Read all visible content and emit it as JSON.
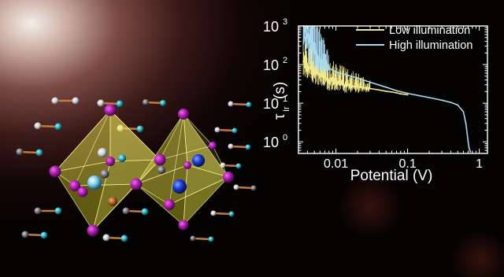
{
  "colors": {
    "low_illumination": "#f0e88a",
    "high_illumination": "#a9d8f0",
    "axes": "#ffffff",
    "octahedron": "#e8e040",
    "halide_atom": "#b020b0",
    "metal_atom": "#1a3cd0"
  },
  "chart_data": {
    "type": "line",
    "xscale": "log",
    "yscale": "log",
    "xlim": [
      0.003,
      1.3
    ],
    "ylim": [
      0.5,
      1000
    ],
    "xlabel": "Potential (V)",
    "ylabel_main": "τ",
    "ylabel_sub": "Ir",
    "ylabel_unit": "(s)",
    "x_ticks": [
      {
        "value": 0.01,
        "label": "0.01"
      },
      {
        "value": 0.1,
        "label": "0.1"
      },
      {
        "value": 1,
        "label": "1"
      }
    ],
    "y_ticks": [
      {
        "value": 1,
        "base": "10",
        "exp": "0"
      },
      {
        "value": 10,
        "base": "10",
        "exp": "1"
      },
      {
        "value": 100,
        "base": "10",
        "exp": "2"
      },
      {
        "value": 1000,
        "base": "10",
        "exp": "3"
      }
    ],
    "legend_position": "top-right",
    "series": [
      {
        "name": "Low illumination",
        "color": "#f0e88a",
        "noisy_until": 0.03,
        "x": [
          0.0035,
          0.004,
          0.005,
          0.006,
          0.007,
          0.008,
          0.01,
          0.012,
          0.015,
          0.02,
          0.025,
          0.03,
          0.04,
          0.05,
          0.06,
          0.07,
          0.08,
          0.09,
          0.1
        ],
        "y": [
          120,
          90,
          65,
          52,
          45,
          40,
          35,
          31,
          29,
          27,
          25,
          24,
          22,
          20.5,
          19.5,
          18.5,
          17.5,
          17,
          16.5
        ]
      },
      {
        "name": "High illumination",
        "color": "#a9d8f0",
        "noisy_until": 0.008,
        "x": [
          0.0035,
          0.004,
          0.005,
          0.006,
          0.007,
          0.008,
          0.009,
          0.01,
          0.015,
          0.02,
          0.03,
          0.05,
          0.07,
          0.1,
          0.15,
          0.2,
          0.3,
          0.4,
          0.5,
          0.6,
          0.65,
          0.7,
          0.72,
          0.75
        ],
        "y": [
          1000,
          500,
          200,
          140,
          100,
          80,
          72,
          65,
          52,
          45,
          35,
          26,
          21,
          18,
          15.5,
          14,
          12,
          10.5,
          9,
          6,
          3,
          1,
          0.7,
          0.55
        ]
      }
    ]
  }
}
